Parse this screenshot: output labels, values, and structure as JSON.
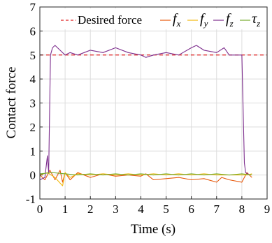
{
  "chart_data": {
    "type": "line",
    "title": "",
    "xlabel": "Time (s)",
    "ylabel": "Contact force",
    "xlim": [
      0,
      9
    ],
    "ylim": [
      -1,
      7
    ],
    "x_ticks": [
      0,
      1,
      2,
      3,
      4,
      5,
      6,
      7,
      8,
      9
    ],
    "y_ticks": [
      -1,
      0,
      1,
      2,
      3,
      4,
      5,
      6,
      7
    ],
    "grid": true,
    "legend_position": "top",
    "legend_orientation": "horizontal",
    "reference_line": {
      "name": "Desired force",
      "y": 5,
      "color": "#e02020",
      "style": "dashed"
    },
    "series": [
      {
        "name": "f_x",
        "label_main": "f",
        "label_sub": "x",
        "color": "#e8590c",
        "x": [
          0,
          0.2,
          0.4,
          0.6,
          0.8,
          0.9,
          1.0,
          1.2,
          1.5,
          2.0,
          2.5,
          3.0,
          3.5,
          4.0,
          4.2,
          4.5,
          5.0,
          5.5,
          6.0,
          6.5,
          7.0,
          7.2,
          7.5,
          8.0,
          8.2,
          8.4
        ],
        "values": [
          0.0,
          -0.2,
          0.2,
          -0.2,
          0.2,
          -0.3,
          0.1,
          -0.2,
          0.1,
          -0.1,
          0.05,
          -0.05,
          0.0,
          -0.05,
          0.05,
          -0.2,
          -0.15,
          -0.1,
          -0.2,
          -0.15,
          -0.3,
          -0.1,
          -0.2,
          -0.3,
          0.1,
          -0.1
        ]
      },
      {
        "name": "f_y",
        "label_main": "f",
        "label_sub": "y",
        "color": "#f2b90f",
        "x": [
          0,
          0.3,
          0.6,
          0.9,
          1.0,
          1.2,
          1.5,
          2.0,
          2.5,
          3.0,
          3.5,
          4.0,
          4.5,
          5.0,
          5.5,
          6.0,
          6.5,
          7.0,
          7.5,
          8.0,
          8.2,
          8.4
        ],
        "values": [
          0.0,
          0.1,
          -0.1,
          -0.45,
          0.1,
          -0.1,
          0.05,
          0.0,
          0.05,
          0.0,
          0.05,
          0.0,
          0.05,
          0.0,
          0.05,
          0.0,
          0.05,
          0.0,
          0.0,
          0.0,
          0.0,
          0.05
        ]
      },
      {
        "name": "f_z",
        "label_main": "f",
        "label_sub": "z",
        "color": "#7e2f8e",
        "x": [
          0,
          0.2,
          0.3,
          0.35,
          0.42,
          0.5,
          0.6,
          0.8,
          1.0,
          1.2,
          1.5,
          2.0,
          2.5,
          3.0,
          3.5,
          4.0,
          4.2,
          4.5,
          5.0,
          5.5,
          6.0,
          6.2,
          6.5,
          7.0,
          7.3,
          7.5,
          8.0,
          8.1,
          8.15,
          8.3
        ],
        "values": [
          -0.2,
          -0.1,
          0.8,
          0.1,
          5.0,
          5.3,
          5.4,
          5.2,
          5.0,
          5.1,
          5.0,
          5.2,
          5.1,
          5.3,
          5.1,
          5.0,
          4.9,
          5.0,
          5.1,
          5.0,
          5.3,
          5.4,
          5.2,
          5.1,
          5.3,
          5.0,
          5.0,
          0.5,
          0.1,
          0.0
        ]
      },
      {
        "name": "tau_z",
        "label_main": "τ",
        "label_sub": "z",
        "color": "#77ac30",
        "x": [
          0,
          0.5,
          1.0,
          1.5,
          2.0,
          2.5,
          3.0,
          3.5,
          4.0,
          4.5,
          5.0,
          5.5,
          6.0,
          6.5,
          7.0,
          7.5,
          8.0,
          8.4
        ],
        "values": [
          0.05,
          0.1,
          0.05,
          0.0,
          0.05,
          0.0,
          0.05,
          0.0,
          0.05,
          0.0,
          0.05,
          0.0,
          0.05,
          0.0,
          0.05,
          0.0,
          0.05,
          0.0
        ]
      }
    ]
  }
}
